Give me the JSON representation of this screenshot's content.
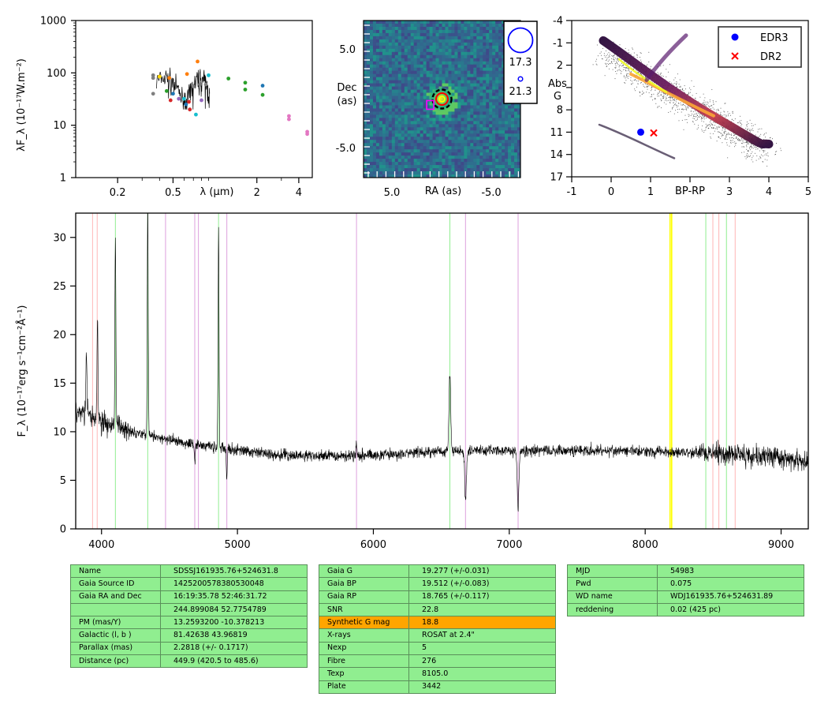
{
  "sed": {
    "ylabel": "λF_λ (10⁻¹⁷W.m⁻²)",
    "xlabel": "λ (μm)",
    "yticks": [
      "1",
      "10",
      "100",
      "1000"
    ],
    "xticks": [
      "0.2",
      "0.5",
      "2",
      "4"
    ],
    "xlim": [
      0.1,
      5.0
    ],
    "ylim": [
      1,
      1000
    ]
  },
  "image": {
    "ylabel_1": "Dec",
    "ylabel_2": "(as)",
    "xlabel": "RA (as)",
    "xticks": [
      "5.0",
      "-5.0"
    ],
    "yticks": [
      "5.0",
      "-5.0"
    ],
    "legend_values": [
      "17.3",
      "21.3"
    ]
  },
  "hr": {
    "xlabel": "BP-RP",
    "ylabel_1": "Abs",
    "ylabel_2": "G",
    "xticks": [
      "-1",
      "0",
      "1",
      "3",
      "4",
      "5"
    ],
    "yticks": [
      "-4",
      "-1",
      "2",
      "8",
      "11",
      "14",
      "17"
    ],
    "legend": [
      {
        "label": "EDR3",
        "color": "#0000ff",
        "marker": "circle"
      },
      {
        "label": "DR2",
        "color": "#ff0000",
        "marker": "x"
      }
    ]
  },
  "chart_data": [
    {
      "type": "scatter",
      "title": "",
      "xlabel": "λ (μm)",
      "ylabel": "λF_λ (10⁻¹⁷W.m⁻²)",
      "x_scale": "log",
      "y_scale": "log",
      "xlim": [
        0.1,
        5.0
      ],
      "ylim": [
        1,
        1000
      ],
      "points": [
        {
          "x": 0.36,
          "y": 90,
          "color": "#7f7f7f"
        },
        {
          "x": 0.36,
          "y": 80,
          "color": "#7f7f7f"
        },
        {
          "x": 0.36,
          "y": 40,
          "color": "#7f7f7f"
        },
        {
          "x": 0.4,
          "y": 85,
          "color": "#ffd700"
        },
        {
          "x": 0.45,
          "y": 45,
          "color": "#2ca02c"
        },
        {
          "x": 0.47,
          "y": 80,
          "color": "#ff7f0e"
        },
        {
          "x": 0.48,
          "y": 30,
          "color": "#d62728"
        },
        {
          "x": 0.5,
          "y": 40,
          "color": "#1f77b4"
        },
        {
          "x": 0.55,
          "y": 32,
          "color": "#9467bd"
        },
        {
          "x": 0.6,
          "y": 32,
          "color": "#17becf"
        },
        {
          "x": 0.62,
          "y": 25,
          "color": "#1f77b4"
        },
        {
          "x": 0.63,
          "y": 95,
          "color": "#ff7f0e"
        },
        {
          "x": 0.65,
          "y": 28,
          "color": "#d62728"
        },
        {
          "x": 0.66,
          "y": 20,
          "color": "#d62728"
        },
        {
          "x": 0.7,
          "y": 55,
          "color": "#7f7f7f"
        },
        {
          "x": 0.73,
          "y": 16,
          "color": "#17becf"
        },
        {
          "x": 0.75,
          "y": 165,
          "color": "#ff7f0e"
        },
        {
          "x": 0.78,
          "y": 60,
          "color": "#7f7f7f"
        },
        {
          "x": 0.8,
          "y": 30,
          "color": "#9467bd"
        },
        {
          "x": 0.86,
          "y": 60,
          "color": "#7f7f7f"
        },
        {
          "x": 0.9,
          "y": 90,
          "color": "#17becf"
        },
        {
          "x": 1.25,
          "y": 78,
          "color": "#2ca02c"
        },
        {
          "x": 1.65,
          "y": 65,
          "color": "#2ca02c"
        },
        {
          "x": 1.65,
          "y": 48,
          "color": "#2ca02c"
        },
        {
          "x": 2.2,
          "y": 57,
          "color": "#1f77b4"
        },
        {
          "x": 2.2,
          "y": 38,
          "color": "#2ca02c"
        },
        {
          "x": 3.4,
          "y": 15,
          "color": "#e377c2"
        },
        {
          "x": 3.4,
          "y": 13,
          "color": "#e377c2"
        },
        {
          "x": 4.6,
          "y": 7.5,
          "color": "#e377c2"
        },
        {
          "x": 4.6,
          "y": 6.8,
          "color": "#e377c2"
        }
      ]
    },
    {
      "type": "heatmap",
      "title": "",
      "xlabel": "RA (as)",
      "ylabel": "Dec (as)",
      "xlim": [
        8.0,
        -8.0
      ],
      "ylim": [
        -8.0,
        8.0
      ],
      "source_offset": [
        0.0,
        0.0
      ],
      "markers": [
        {
          "kind": "circle",
          "color": "#000000",
          "style": "dashed",
          "x": 0.0,
          "y": 0.0
        },
        {
          "kind": "circle",
          "color": "#ff0000",
          "x": 0.0,
          "y": 0.0
        },
        {
          "kind": "circle",
          "color": "#ffff00",
          "x": 0.0,
          "y": 0.0
        },
        {
          "kind": "square",
          "color": "#ff00ff",
          "x": 1.2,
          "y": -0.6
        }
      ]
    },
    {
      "type": "scatter",
      "title": "",
      "xlabel": "BP-RP",
      "ylabel": "Abs G",
      "xlim": [
        -1,
        5
      ],
      "ylim": [
        17,
        -4
      ],
      "series": [
        {
          "name": "EDR3",
          "x": [
            0.75
          ],
          "y": [
            11.0
          ],
          "color": "#0000ff"
        },
        {
          "name": "DR2",
          "x": [
            1.08
          ],
          "y": [
            11.1
          ],
          "color": "#ff0000"
        }
      ]
    },
    {
      "type": "line",
      "title": "",
      "xlabel": "",
      "ylabel": "F_λ (10⁻¹⁷erg s⁻¹cm⁻²Å⁻¹)",
      "xlim": [
        3810,
        9200
      ],
      "ylim": [
        0,
        32.5
      ],
      "xticks": [
        4000,
        5000,
        6000,
        7000,
        8000,
        9000
      ],
      "yticks": [
        0,
        5,
        10,
        15,
        20,
        25,
        30
      ],
      "continuum": [
        [
          3810,
          12.2
        ],
        [
          3900,
          11.8
        ],
        [
          4000,
          11.0
        ],
        [
          4200,
          10.2
        ],
        [
          4400,
          9.4
        ],
        [
          4700,
          8.7
        ],
        [
          5000,
          8.1
        ],
        [
          5300,
          7.6
        ],
        [
          5600,
          7.5
        ],
        [
          5900,
          7.6
        ],
        [
          6200,
          7.7
        ],
        [
          6500,
          8.0
        ],
        [
          6800,
          8.1
        ],
        [
          7100,
          8.0
        ],
        [
          7500,
          8.1
        ],
        [
          7900,
          8.0
        ],
        [
          8300,
          7.9
        ],
        [
          8700,
          7.7
        ],
        [
          9000,
          7.3
        ],
        [
          9200,
          6.8
        ]
      ],
      "emission_lines": [
        {
          "w": 3835,
          "peak": 12
        },
        {
          "w": 3889,
          "peak": 18
        },
        {
          "w": 3970,
          "peak": 22
        },
        {
          "w": 4102,
          "peak": 30
        },
        {
          "w": 4340,
          "peak": 34
        },
        {
          "w": 4471,
          "peak": 9
        },
        {
          "w": 4686,
          "peak": 7
        },
        {
          "w": 4861,
          "peak": 31
        },
        {
          "w": 4922,
          "peak": 5
        },
        {
          "w": 5876,
          "peak": 9
        },
        {
          "w": 6563,
          "peak": 16
        },
        {
          "w": 6678,
          "peak": 3
        },
        {
          "w": 7065,
          "peak": 2
        }
      ],
      "reference_lines": [
        {
          "w": 3934,
          "color": "#ffb6b6"
        },
        {
          "w": 3968,
          "color": "#ffb6b6"
        },
        {
          "w": 4102,
          "color": "#90ee90"
        },
        {
          "w": 4340,
          "color": "#90ee90"
        },
        {
          "w": 4471,
          "color": "#dda0dd"
        },
        {
          "w": 4686,
          "color": "#dda0dd"
        },
        {
          "w": 4713,
          "color": "#dda0dd"
        },
        {
          "w": 4861,
          "color": "#90ee90"
        },
        {
          "w": 4922,
          "color": "#dda0dd"
        },
        {
          "w": 5876,
          "color": "#dda0dd"
        },
        {
          "w": 6563,
          "color": "#90ee90"
        },
        {
          "w": 6678,
          "color": "#dda0dd"
        },
        {
          "w": 7065,
          "color": "#dda0dd"
        },
        {
          "w": 8183,
          "color": "#ffff00"
        },
        {
          "w": 8195,
          "color": "#ffff00"
        },
        {
          "w": 8446,
          "color": "#90ee90"
        },
        {
          "w": 8498,
          "color": "#ffb6b6"
        },
        {
          "w": 8542,
          "color": "#ffb6b6"
        },
        {
          "w": 8598,
          "color": "#90ee90"
        },
        {
          "w": 8662,
          "color": "#ffb6b6"
        }
      ]
    }
  ],
  "tables": {
    "left": [
      [
        "Name",
        "SDSSJ161935.76+524631.8"
      ],
      [
        "Gaia Source ID",
        "1425200578380530048"
      ],
      [
        "Gaia RA and Dec",
        "16:19:35.78     52:46:31.72"
      ],
      [
        "",
        "244.899084     52.7754789"
      ],
      [
        "PM (mas/Y)",
        "13.2593200     -10.378213"
      ],
      [
        "Galactic (l, b )",
        "81.42638     43.96819"
      ],
      [
        "Parallax (mas)",
        "2.2818 (+/- 0.1717)"
      ],
      [
        "Distance (pc)",
        "449.9 (420.5 to 485.6)"
      ]
    ],
    "middle": [
      [
        "Gaia G",
        "19.277 (+/-0.031)"
      ],
      [
        "Gaia BP",
        "19.512 (+/-0.083)"
      ],
      [
        "Gaia RP",
        "18.765 (+/-0.117)"
      ],
      [
        "SNR",
        "22.8"
      ],
      [
        "Synthetic G mag",
        "18.8"
      ],
      [
        "X-rays",
        "ROSAT at 2.4\""
      ],
      [
        "Nexp",
        "5"
      ],
      [
        "Fibre",
        "276"
      ],
      [
        "Texp",
        "8105.0"
      ],
      [
        "Plate",
        "3442"
      ]
    ],
    "middle_highlight_row": 4,
    "right": [
      [
        "MJD",
        "54983"
      ],
      [
        "Pwd",
        "0.075"
      ],
      [
        "WD name",
        "WDJ161935.76+524631.89"
      ],
      [
        "reddening",
        "0.02 (425 pc)"
      ]
    ]
  }
}
